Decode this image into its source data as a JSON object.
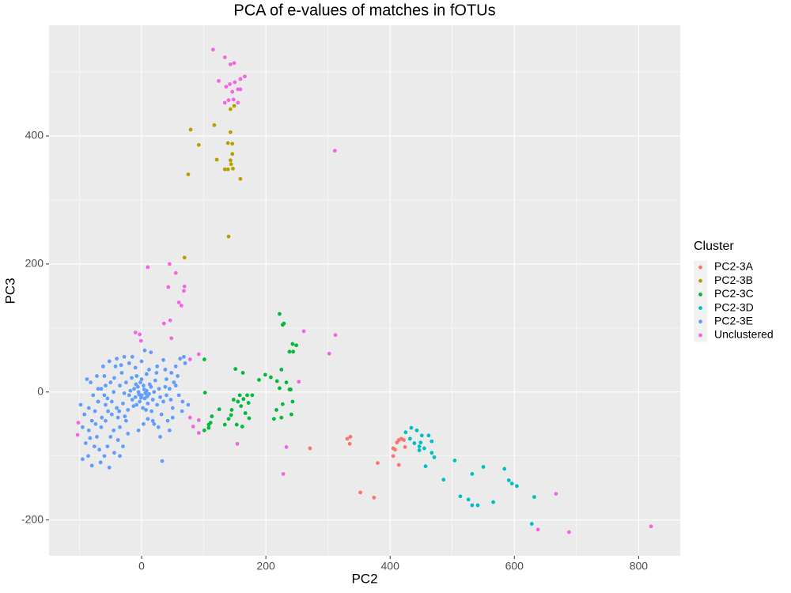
{
  "chart_data": {
    "type": "scatter",
    "title": "PCA of e-values of matches in fOTUs",
    "x_label": "PC2",
    "y_label": "PC3",
    "legend_title": "Cluster",
    "legend_position": "right",
    "grid": true,
    "xlim": [
      -149,
      867
    ],
    "ylim": [
      -256,
      573
    ],
    "xticks": [
      0,
      200,
      400,
      600,
      800
    ],
    "yticks": [
      -200,
      0,
      200,
      400
    ],
    "xminor": [
      -100,
      100,
      300,
      500,
      700
    ],
    "yminor": [
      -100,
      100,
      300,
      500
    ],
    "series": [
      {
        "name": "PC2-3A",
        "color": "#F8766D",
        "x": [
          336,
          331,
          335,
          271,
          405,
          408,
          414,
          418,
          422,
          411,
          424,
          405,
          380,
          414,
          352,
          374
        ],
        "values": [
          -70,
          -73,
          -81,
          -88,
          -88,
          -90,
          -75,
          -73,
          -75,
          -79,
          -86,
          -100,
          -111,
          -114,
          -157,
          -165
        ]
      },
      {
        "name": "PC2-3B",
        "color": "#B79F00",
        "x": [
          79,
          92,
          117,
          143,
          139,
          146,
          146,
          121,
          143,
          144,
          147,
          134,
          139,
          159,
          75,
          140,
          69,
          143,
          149
        ],
        "values": [
          410,
          386,
          417,
          406,
          389,
          388,
          372,
          363,
          362,
          356,
          349,
          348,
          348,
          333,
          340,
          243,
          210,
          442,
          447
        ]
      },
      {
        "name": "PC2-3C",
        "color": "#00BA38",
        "x": [
          222,
          227,
          229,
          243,
          249,
          238,
          244,
          101,
          225,
          218,
          208,
          199,
          151,
          163,
          189,
          233,
          238,
          240,
          222,
          102,
          178,
          158,
          170,
          164,
          148,
          155,
          172,
          160,
          243,
          227,
          217,
          241,
          125,
          145,
          167,
          144,
          113,
          225,
          213,
          173,
          140,
          111,
          134,
          153,
          162,
          108,
          101,
          108
        ],
        "values": [
          122,
          105,
          107,
          75,
          73,
          63,
          63,
          51,
          35,
          17,
          23,
          27,
          36,
          30,
          19,
          15,
          4,
          4,
          6,
          -1,
          -5,
          -5,
          -5,
          -11,
          -12,
          -15,
          -17,
          -22,
          -15,
          -19,
          -28,
          -35,
          -27,
          -28,
          -33,
          -36,
          -38,
          -40,
          -42,
          -41,
          -42,
          -48,
          -51,
          -51,
          -54,
          -56,
          -60,
          -51
        ]
      },
      {
        "name": "PC2-3D",
        "color": "#00BFC4",
        "x": [
          434,
          443,
          425,
          451,
          462,
          432,
          439,
          449,
          447,
          467,
          455,
          447,
          467,
          471,
          457,
          486,
          504,
          550,
          532,
          584,
          591,
          596,
          604,
          513,
          526,
          532,
          541,
          566,
          632,
          628
        ],
        "values": [
          -56,
          -60,
          -63,
          -68,
          -68,
          -73,
          -80,
          -79,
          -85,
          -77,
          -88,
          -91,
          -95,
          -102,
          -116,
          -137,
          -107,
          -117,
          -128,
          -120,
          -138,
          -143,
          -147,
          -163,
          -168,
          -177,
          -177,
          -172,
          -164,
          -206
        ]
      },
      {
        "name": "PC2-3E",
        "color": "#619CFF",
        "x": [
          0,
          -5,
          5,
          -10,
          8,
          -3,
          3,
          -12,
          12,
          -8,
          10,
          -15,
          15,
          -2,
          2,
          -18,
          18,
          -6,
          6,
          -1,
          4,
          -4,
          9,
          -9,
          13,
          -13,
          0,
          -20,
          20,
          7,
          -25,
          25,
          -22,
          22,
          -28,
          28,
          -16,
          16,
          -30,
          30,
          -35,
          35,
          -40,
          40,
          -32,
          32,
          -45,
          45,
          -38,
          38,
          -50,
          50,
          -42,
          42,
          -55,
          55,
          -48,
          48,
          -20,
          20,
          -10,
          10,
          -25,
          25,
          0,
          3,
          -60,
          60,
          -58,
          58,
          -65,
          65,
          -35,
          35,
          -15,
          15,
          5,
          -5,
          70,
          62,
          50,
          45,
          30,
          -28,
          -70,
          -75,
          -80,
          -85,
          -90,
          -95,
          -72,
          -68,
          -60,
          -55,
          -50,
          -65,
          -78,
          -82,
          -88,
          -72,
          -62,
          -52,
          -40,
          -45,
          -38,
          -30,
          -22,
          -58,
          -85,
          -92,
          -98,
          -76,
          -66,
          -52,
          -44,
          -35,
          -86,
          -80,
          -70,
          -60,
          -95,
          -74,
          -64,
          -54,
          -48,
          -44,
          -36,
          -27,
          -33,
          33,
          -58,
          -83,
          52,
          68,
          55,
          40,
          47,
          66,
          75,
          27,
          18,
          12,
          8,
          -8,
          24,
          38
        ],
        "values": [
          -5,
          0,
          -10,
          -8,
          2,
          -15,
          10,
          5,
          -3,
          -20,
          -18,
          -12,
          8,
          15,
          -25,
          2,
          -12,
          8,
          -2,
          -9,
          4,
          -4,
          -7,
          12,
          12,
          -22,
          20,
          -5,
          0,
          -28,
          15,
          -20,
          -28,
          18,
          -2,
          5,
          22,
          -30,
          -18,
          -8,
          10,
          -15,
          -25,
          20,
          30,
          -35,
          0,
          5,
          -40,
          35,
          15,
          -25,
          40,
          -45,
          -10,
          10,
          -35,
          30,
          45,
          -50,
          38,
          -42,
          -45,
          40,
          48,
          -50,
          25,
          -5,
          -20,
          25,
          5,
          -30,
          -55,
          50,
          55,
          62,
          65,
          -60,
          45,
          52,
          -40,
          -60,
          -70,
          55,
          -15,
          -30,
          -45,
          -60,
          -80,
          -105,
          -70,
          -90,
          -100,
          -85,
          -70,
          -55,
          -5,
          15,
          20,
          25,
          40,
          48,
          52,
          -60,
          -75,
          -85,
          -65,
          -45,
          -25,
          -35,
          -20,
          -85,
          -110,
          -118,
          -95,
          -100,
          -100,
          -115,
          5,
          -5,
          -55,
          -50,
          -40,
          -30,
          -15,
          22,
          -30,
          -38,
          42,
          -108,
          10,
          -72,
          15,
          55,
          40,
          -5,
          -12,
          -15,
          -20,
          -55,
          -45,
          35,
          28,
          25,
          30,
          8
        ]
      },
      {
        "name": "Unclustered",
        "color": "#F564E3",
        "x": [
          115,
          134,
          143,
          149,
          159,
          166,
          124,
          142,
          150,
          136,
          155,
          146,
          159,
          140,
          134,
          148,
          155,
          311,
          10,
          45,
          55,
          69,
          68,
          43,
          60,
          64,
          46,
          36,
          -10,
          -3,
          -1,
          48,
          92,
          78,
          261,
          312,
          302,
          253,
          -102,
          -103,
          78,
          92,
          83,
          92,
          154,
          233,
          228,
          667,
          638,
          688,
          820
        ],
        "values": [
          535,
          523,
          512,
          514,
          489,
          493,
          486,
          481,
          484,
          477,
          473,
          469,
          473,
          456,
          452,
          457,
          452,
          377,
          195,
          200,
          186,
          165,
          158,
          164,
          140,
          135,
          112,
          107,
          93,
          90,
          80,
          84,
          59,
          51,
          95,
          89,
          60,
          16,
          -48,
          -67,
          -40,
          -44,
          -54,
          -64,
          -81,
          -86,
          -128,
          -159,
          -215,
          -219,
          -210
        ]
      }
    ]
  }
}
